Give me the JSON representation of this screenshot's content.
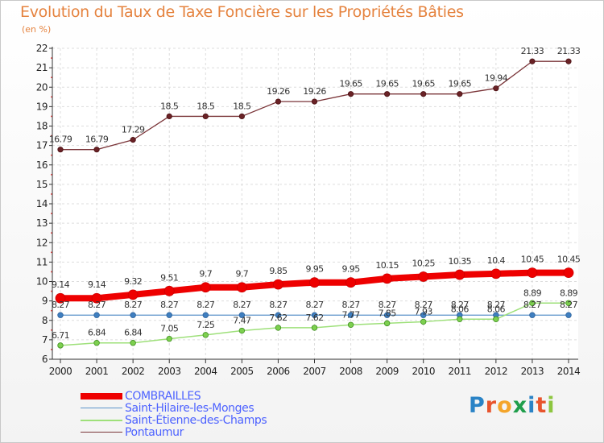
{
  "header": {
    "title": "Evolution du Taux de Taxe Foncière sur les Propriétés Bâties",
    "subtitle": "(en %)"
  },
  "logo": {
    "text": "Proxiti",
    "letter_colors": [
      "#2a83c6",
      "#e8542d",
      "#f4a52a",
      "#1f9e4b",
      "#2a83c6",
      "#e8542d",
      "#8dc63f"
    ]
  },
  "chart_data": {
    "type": "line",
    "title": "Evolution du Taux de Taxe Foncière sur les Propriétés Bâties",
    "ylabel": "(en %)",
    "xlabel": "",
    "x": [
      "2000",
      "2001",
      "2002",
      "2003",
      "2004",
      "2005",
      "2006",
      "2007",
      "2008",
      "2009",
      "2010",
      "2011",
      "2012",
      "2013",
      "2014"
    ],
    "ylim": [
      6,
      22
    ],
    "yticks": [
      6,
      7,
      8,
      9,
      10,
      11,
      12,
      13,
      14,
      15,
      16,
      17,
      18,
      19,
      20,
      21,
      22
    ],
    "grid": true,
    "legend_position": "bottom-left",
    "series": [
      {
        "name": "COMBRAILLES",
        "color": "#ee0000",
        "values": [
          9.14,
          9.14,
          9.32,
          9.51,
          9.7,
          9.7,
          9.85,
          9.95,
          9.95,
          10.15,
          10.25,
          10.35,
          10.4,
          10.45,
          10.45
        ],
        "labels": [
          "9.14",
          "9.14",
          "9.32",
          "9.51",
          "9.7",
          "9.7",
          "9.85",
          "9.95",
          "9.95",
          "10.15",
          "10.25",
          "10.35",
          "10.4",
          "10.45",
          "10.45"
        ]
      },
      {
        "name": "Saint-Hilaire-les-Monges",
        "color": "#5b93c9",
        "values": [
          8.27,
          8.27,
          8.27,
          8.27,
          8.27,
          8.27,
          8.27,
          8.27,
          8.27,
          8.27,
          8.27,
          8.27,
          8.27,
          8.27,
          8.27
        ],
        "labels": [
          "8.27",
          "8.27",
          "8.27",
          "8.27",
          "8.27",
          "8.27",
          "8.27",
          "8.27",
          "8.27",
          "8.27",
          "8.27",
          "8.27",
          "8.27",
          "8.27",
          "8.27"
        ]
      },
      {
        "name": "Saint-Étienne-des-Champs",
        "color": "#9ee07a",
        "values": [
          6.71,
          6.84,
          6.84,
          7.05,
          7.25,
          7.47,
          7.62,
          7.62,
          7.77,
          7.85,
          7.93,
          8.06,
          8.06,
          8.89,
          8.89
        ],
        "labels": [
          "6.71",
          "6.84",
          "6.84",
          "7.05",
          "7.25",
          "7.47",
          "7.62",
          "7.62",
          "7.77",
          "7.85",
          "7.93",
          "8.06",
          "8.06",
          "8.89",
          "8.89"
        ]
      },
      {
        "name": "Pontaumur",
        "color": "#7a3438",
        "values": [
          16.79,
          16.79,
          17.29,
          18.5,
          18.5,
          18.5,
          19.26,
          19.26,
          19.65,
          19.65,
          19.65,
          19.65,
          19.94,
          21.33,
          21.33
        ],
        "labels": [
          "16.79",
          "16.79",
          "17.29",
          "18.5",
          "18.5",
          "18.5",
          "19.26",
          "19.26",
          "19.65",
          "19.65",
          "19.65",
          "19.65",
          "19.94",
          "21.33",
          "21.33"
        ]
      }
    ]
  }
}
